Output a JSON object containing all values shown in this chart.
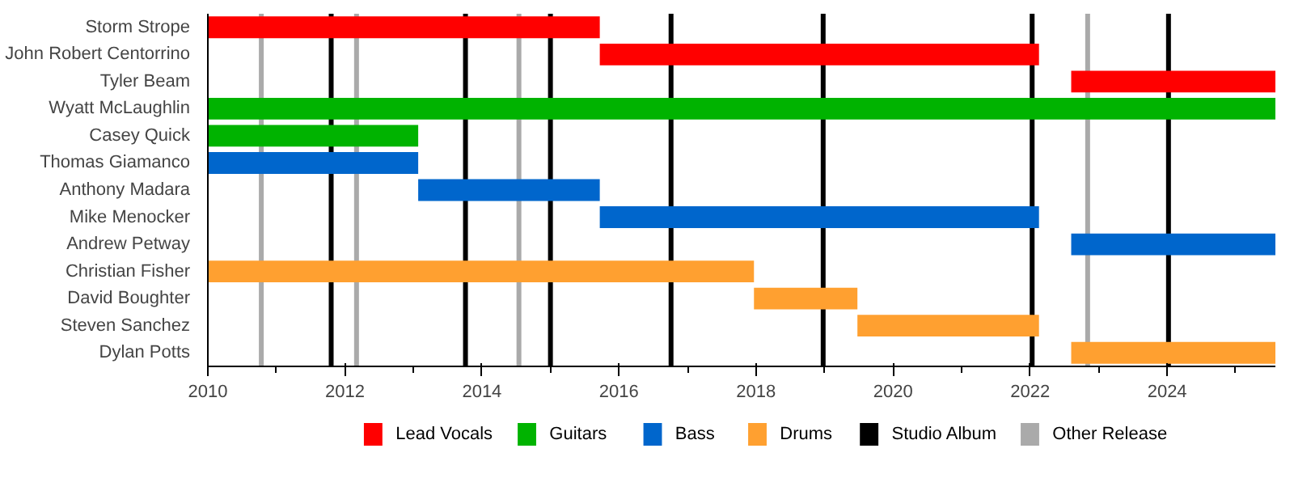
{
  "chart_data": {
    "type": "bar",
    "orientation": "horizontal",
    "categories": [
      "Storm Strope",
      "John Robert Centorrino",
      "Tyler Beam",
      "Wyatt McLaughlin",
      "Casey Quick",
      "Thomas Giamanco",
      "Anthony Madara",
      "Mike Menocker",
      "Andrew Petway",
      "Christian Fisher",
      "David Boughter",
      "Steven Sanchez",
      "Dylan Potts"
    ],
    "series": [
      {
        "name": "Lead Vocals",
        "color": "#ff0000",
        "base": [
          2010,
          2015.72,
          2022.6,
          null,
          null,
          null,
          null,
          null,
          null,
          null,
          null,
          null,
          null
        ],
        "values": [
          5.72,
          6.41,
          2.98,
          null,
          null,
          null,
          null,
          null,
          null,
          null,
          null,
          null,
          null
        ]
      },
      {
        "name": "Guitars",
        "color": "#00b300",
        "base": [
          null,
          null,
          null,
          2010,
          2010,
          null,
          null,
          null,
          null,
          null,
          null,
          null,
          null
        ],
        "values": [
          null,
          null,
          null,
          15.58,
          3.07,
          null,
          null,
          null,
          null,
          null,
          null,
          null,
          null
        ]
      },
      {
        "name": "Bass",
        "color": "#0066cc",
        "base": [
          null,
          null,
          null,
          null,
          null,
          2010,
          2013.07,
          2015.72,
          2022.6,
          null,
          null,
          null,
          null
        ],
        "values": [
          null,
          null,
          null,
          null,
          null,
          3.07,
          2.65,
          6.41,
          2.98,
          null,
          null,
          null,
          null
        ]
      },
      {
        "name": "Drums",
        "color": "#ffa030",
        "base": [
          null,
          null,
          null,
          null,
          null,
          null,
          null,
          null,
          null,
          2010,
          2017.97,
          2019.48,
          2022.6
        ],
        "values": [
          null,
          null,
          null,
          null,
          null,
          null,
          null,
          null,
          null,
          7.97,
          1.51,
          2.65,
          2.98
        ]
      }
    ],
    "ref_lines": [
      {
        "axis": "x",
        "value": 2011.8,
        "label": "Studio Album",
        "color": "#000000"
      },
      {
        "axis": "x",
        "value": 2013.76,
        "color": "#000000"
      },
      {
        "axis": "x",
        "value": 2015.0,
        "color": "#000000"
      },
      {
        "axis": "x",
        "value": 2016.76,
        "color": "#000000"
      },
      {
        "axis": "x",
        "value": 2018.98,
        "color": "#000000"
      },
      {
        "axis": "x",
        "value": 2022.03,
        "color": "#000000"
      },
      {
        "axis": "x",
        "value": 2024.02,
        "color": "#000000"
      },
      {
        "axis": "x",
        "value": 2010.78,
        "label": "Other Release",
        "color": "#aaaaaa"
      },
      {
        "axis": "x",
        "value": 2012.17,
        "color": "#aaaaaa"
      },
      {
        "axis": "x",
        "value": 2014.54,
        "color": "#aaaaaa"
      },
      {
        "axis": "x",
        "value": 2022.84,
        "color": "#aaaaaa"
      }
    ],
    "xlim": [
      2010,
      2025.58
    ],
    "xticks": [
      2010,
      {
        "value": 2011,
        "label": null
      },
      2012,
      {
        "value": 2013,
        "label": null
      },
      2014,
      {
        "value": 2015,
        "label": null
      },
      2016,
      {
        "value": 2017,
        "label": null
      },
      2018,
      {
        "value": 2019,
        "label": null
      },
      2020,
      {
        "value": 2021,
        "label": null
      },
      2022,
      {
        "value": 2023,
        "label": null
      },
      2024,
      {
        "value": 2025,
        "label": null
      }
    ],
    "grid": false,
    "legend": "bottom"
  }
}
